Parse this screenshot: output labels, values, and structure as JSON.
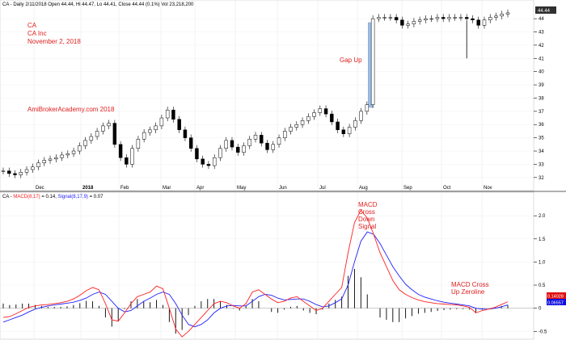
{
  "price_panel": {
    "header": "CA - Daily 2/11/2018 Open 44.44, Hi 44.47, Lo 44.41, Close 44.44 (0.1%) Vol 23,218,200",
    "notes": [
      "CA",
      "CA Inc",
      "November 2, 2018"
    ],
    "watermark": "AmiBrokerAcademy.com  2018",
    "gap_label": "Gap Up",
    "last_price_label": "44.44"
  },
  "macd_panel": {
    "header_parts": [
      "CA - ",
      "MACD(8,17)",
      " = 0.14, ",
      "Signal(8,17,9)",
      " = 0.07"
    ],
    "cross_down_label": [
      "MACD",
      "Cross",
      "Down",
      "Signal"
    ],
    "cross_up_label": [
      "MACD Cross",
      "Up Zeroline"
    ],
    "value_badges": [
      "0.14028",
      "0.06557"
    ]
  },
  "x_tick_labels": [
    "Dec",
    "2018",
    "Feb",
    "Mar",
    "Apr",
    "May",
    "Jun",
    "Jul",
    "Aug",
    "Sep",
    "Oct",
    "Nov"
  ],
  "colors": {
    "macd": "#ff2020",
    "signal": "#2020ff",
    "annotation": "#e02020",
    "gap_box": "#9dbde6"
  },
  "chart_data": [
    {
      "type": "candlestick",
      "ylim": [
        31.5,
        44.8
      ],
      "y_ticks": [
        32,
        33,
        34,
        35,
        36,
        37,
        38,
        39,
        40,
        41,
        42,
        43,
        44
      ],
      "series": [
        {
          "values": [
            32.5,
            32.3,
            32.2,
            32.4,
            32.6,
            32.8,
            33.1,
            33.3,
            33.4,
            33.5,
            33.7,
            33.8,
            34.0,
            34.4,
            34.8,
            35.1,
            35.5,
            35.9,
            36.1,
            34.5,
            33.5,
            33.0,
            34.2,
            34.9,
            35.4,
            35.6,
            35.9,
            36.5,
            37.1,
            36.4,
            35.6,
            35.0,
            34.2,
            33.4,
            33.0,
            32.9,
            33.5,
            34.2,
            34.8,
            34.3,
            33.9,
            34.4,
            34.9,
            35.2,
            34.6,
            34.1,
            34.5,
            35.0,
            35.5,
            35.8,
            36.0,
            36.3,
            36.6,
            36.9,
            37.2,
            36.8,
            36.2,
            35.6,
            35.3,
            35.8,
            36.3,
            37.0,
            37.5,
            44.0,
            44.1,
            44.1,
            44.1,
            43.9,
            43.5,
            43.6,
            43.8,
            43.9,
            44.0,
            44.0,
            44.1,
            44.0,
            44.1,
            44.1,
            44.1,
            44.0,
            43.9,
            43.5,
            43.9,
            44.1,
            44.2,
            44.35,
            44.44
          ]
        }
      ]
    },
    {
      "type": "line",
      "ylim": [
        -0.6,
        2.3
      ],
      "y_ticks": [
        -0.5,
        0,
        0.5,
        1.0,
        1.5,
        2.0
      ],
      "series": [
        {
          "name": "MACD(8,17)",
          "values": [
            -0.2,
            -0.18,
            -0.12,
            -0.05,
            0.02,
            0.05,
            0.07,
            0.08,
            0.1,
            0.12,
            0.15,
            0.2,
            0.28,
            0.38,
            0.45,
            0.4,
            0.1,
            -0.25,
            -0.28,
            -0.1,
            0.1,
            0.25,
            0.3,
            0.35,
            0.48,
            0.42,
            0.0,
            -0.45,
            -0.62,
            -0.5,
            -0.35,
            -0.2,
            -0.05,
            0.1,
            0.15,
            0.12,
            0.05,
            0.0,
            0.1,
            0.35,
            0.4,
            0.3,
            0.2,
            0.12,
            0.15,
            0.22,
            0.25,
            0.15,
            0.05,
            -0.05,
            0.0,
            0.15,
            0.3,
            0.45,
            1.2,
            1.85,
            2.12,
            1.95,
            1.6,
            1.2,
            0.9,
            0.6,
            0.4,
            0.3,
            0.23,
            0.18,
            0.14,
            0.12,
            0.1,
            0.09,
            0.08,
            0.07,
            0.05,
            0.02,
            -0.1,
            -0.05,
            -0.02,
            0.02,
            0.08,
            0.14
          ]
        },
        {
          "name": "Signal(8,17,9)",
          "values": [
            -0.3,
            -0.25,
            -0.2,
            -0.15,
            -0.08,
            -0.02,
            0.02,
            0.05,
            0.07,
            0.09,
            0.11,
            0.13,
            0.17,
            0.22,
            0.3,
            0.35,
            0.3,
            0.15,
            0.0,
            -0.08,
            -0.05,
            0.05,
            0.15,
            0.22,
            0.3,
            0.35,
            0.3,
            0.1,
            -0.15,
            -0.35,
            -0.4,
            -0.35,
            -0.25,
            -0.1,
            0.0,
            0.05,
            0.06,
            0.05,
            0.05,
            0.15,
            0.25,
            0.3,
            0.28,
            0.22,
            0.18,
            0.19,
            0.2,
            0.2,
            0.15,
            0.08,
            0.03,
            0.05,
            0.12,
            0.2,
            0.5,
            1.0,
            1.45,
            1.65,
            1.6,
            1.4,
            1.15,
            0.9,
            0.7,
            0.52,
            0.4,
            0.3,
            0.24,
            0.2,
            0.16,
            0.13,
            0.11,
            0.09,
            0.07,
            0.05,
            0.0,
            -0.02,
            -0.02,
            0.0,
            0.03,
            0.07
          ]
        }
      ]
    }
  ]
}
